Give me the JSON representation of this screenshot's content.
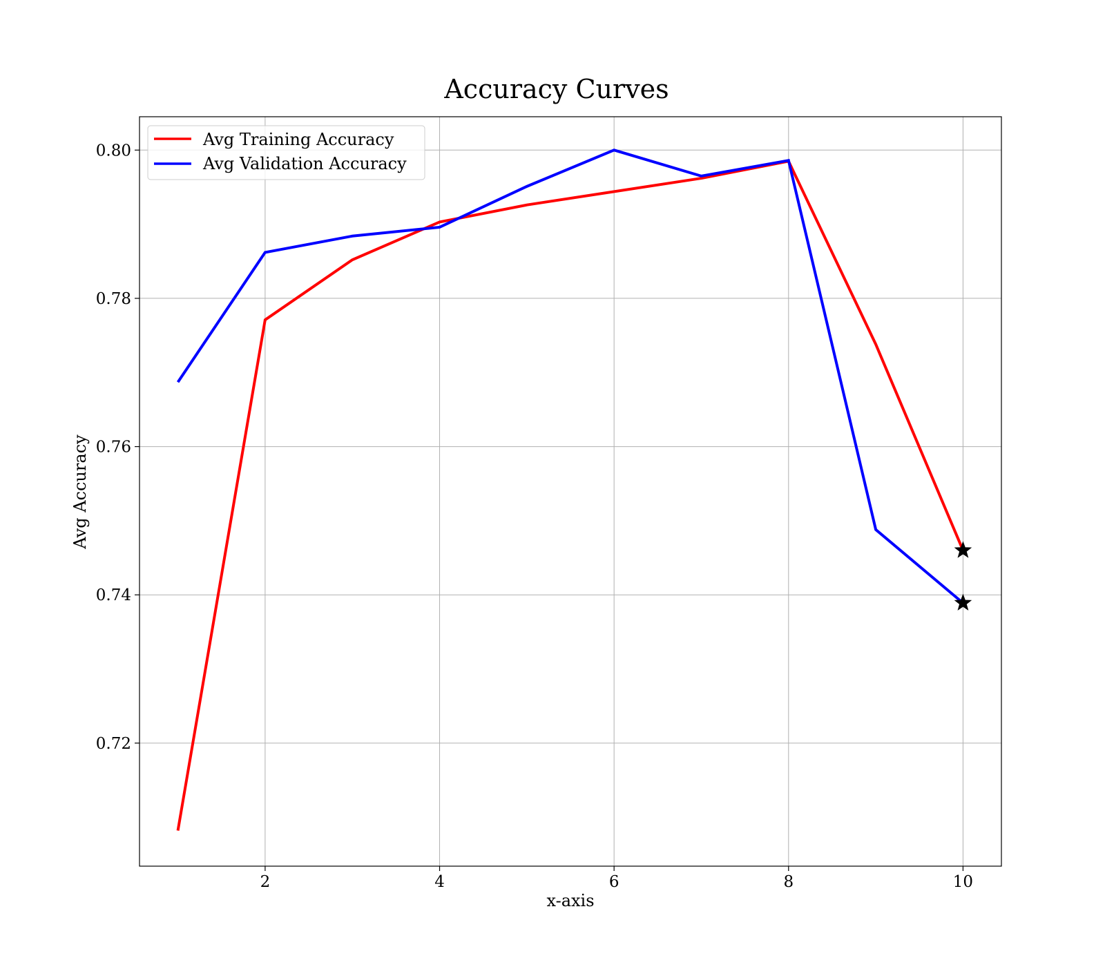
{
  "chart_data": {
    "type": "line",
    "title": "Accuracy Curves",
    "xlabel": "x-axis",
    "ylabel": "Avg Accuracy",
    "x": [
      1,
      2,
      3,
      4,
      5,
      6,
      7,
      8,
      9,
      10
    ],
    "xlim": [
      0.56,
      10.44
    ],
    "ylim": [
      0.7034,
      0.8045
    ],
    "xticks": [
      2,
      4,
      6,
      8,
      10
    ],
    "xtick_labels": [
      "2",
      "4",
      "6",
      "8",
      "10"
    ],
    "yticks": [
      0.72,
      0.74,
      0.76,
      0.78,
      0.8
    ],
    "ytick_labels": [
      "0.72",
      "0.74",
      "0.76",
      "0.78",
      "0.80"
    ],
    "grid": true,
    "legend_position": "top-left",
    "series": [
      {
        "name": "Avg Training Accuracy",
        "color": "#ff0000",
        "values": [
          0.7082,
          0.7771,
          0.7852,
          0.7903,
          0.7926,
          0.7944,
          0.7962,
          0.7985,
          0.7738,
          0.746
        ],
        "end_marker": "star"
      },
      {
        "name": "Avg Validation Accuracy",
        "color": "#0000ff",
        "values": [
          0.7687,
          0.7862,
          0.7884,
          0.7896,
          0.7951,
          0.8,
          0.7965,
          0.7986,
          0.7488,
          0.7389
        ],
        "end_marker": "star"
      }
    ],
    "marker_color": "#000000"
  }
}
